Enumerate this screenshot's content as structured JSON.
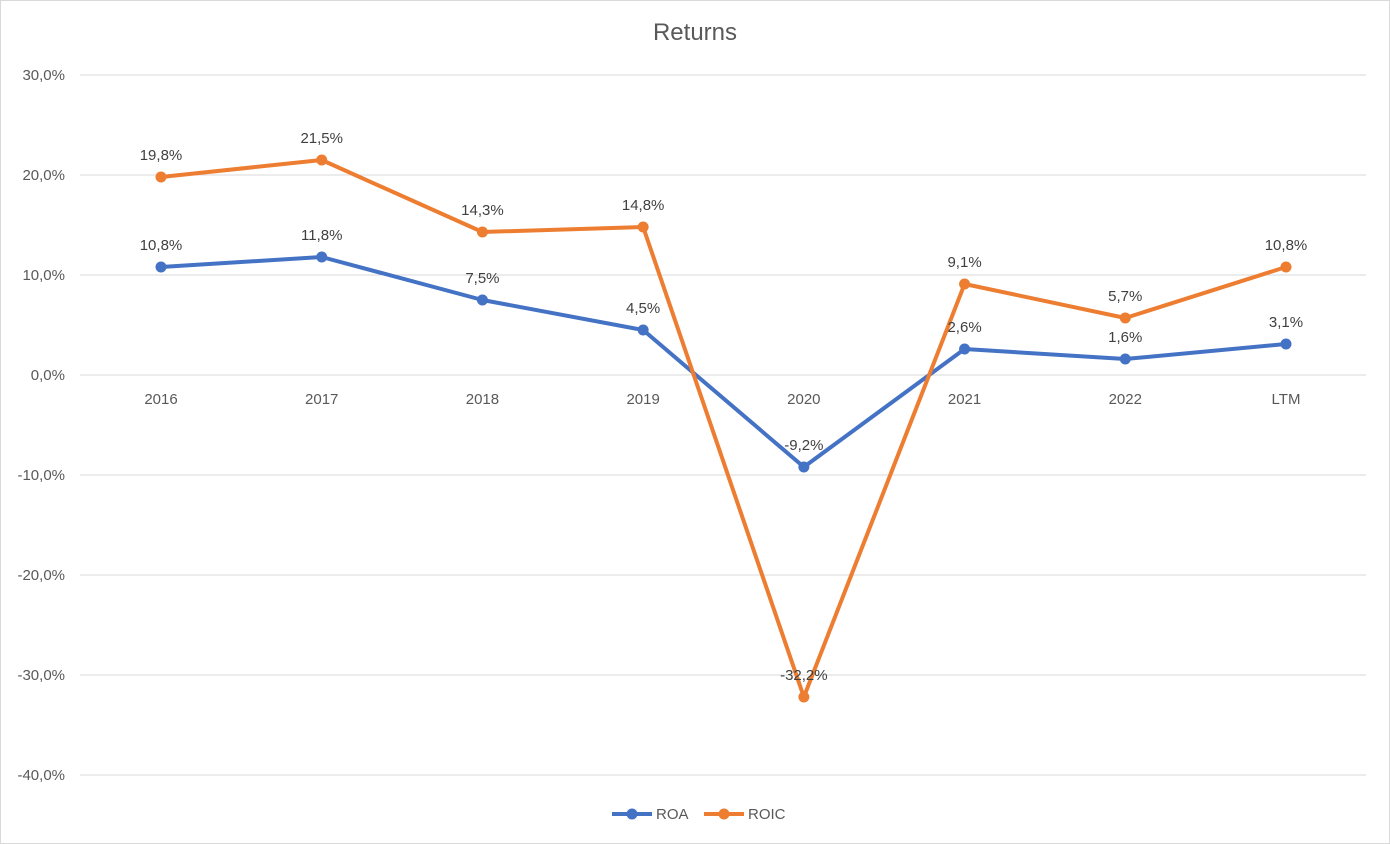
{
  "chart_data": {
    "type": "line",
    "title": "Returns",
    "categories": [
      "2016",
      "2017",
      "2018",
      "2019",
      "2020",
      "2021",
      "2022",
      "LTM"
    ],
    "ylim": [
      -40,
      30
    ],
    "yticks": [
      30,
      20,
      10,
      0,
      -10,
      -20,
      -30,
      -40
    ],
    "ytick_labels": [
      "30,0%",
      "20,0%",
      "10,0%",
      "0,0%",
      "-10,0%",
      "-20,0%",
      "-30,0%",
      "-40,0%"
    ],
    "grid": true,
    "legend_position": "bottom",
    "series": [
      {
        "name": "ROA",
        "color": "#4472c4",
        "values": [
          10.8,
          11.8,
          7.5,
          4.5,
          -9.2,
          2.6,
          1.6,
          3.1
        ],
        "labels": [
          "10,8%",
          "11,8%",
          "7,5%",
          "4,5%",
          "-9,2%",
          "2,6%",
          "1,6%",
          "3,1%"
        ]
      },
      {
        "name": "ROIC",
        "color": "#ed7d31",
        "values": [
          19.8,
          21.5,
          14.3,
          14.8,
          -32.2,
          9.1,
          5.7,
          10.8
        ],
        "labels": [
          "19,8%",
          "21,5%",
          "14,3%",
          "14,8%",
          "-32,2%",
          "9,1%",
          "5,7%",
          "10,8%"
        ]
      }
    ]
  }
}
